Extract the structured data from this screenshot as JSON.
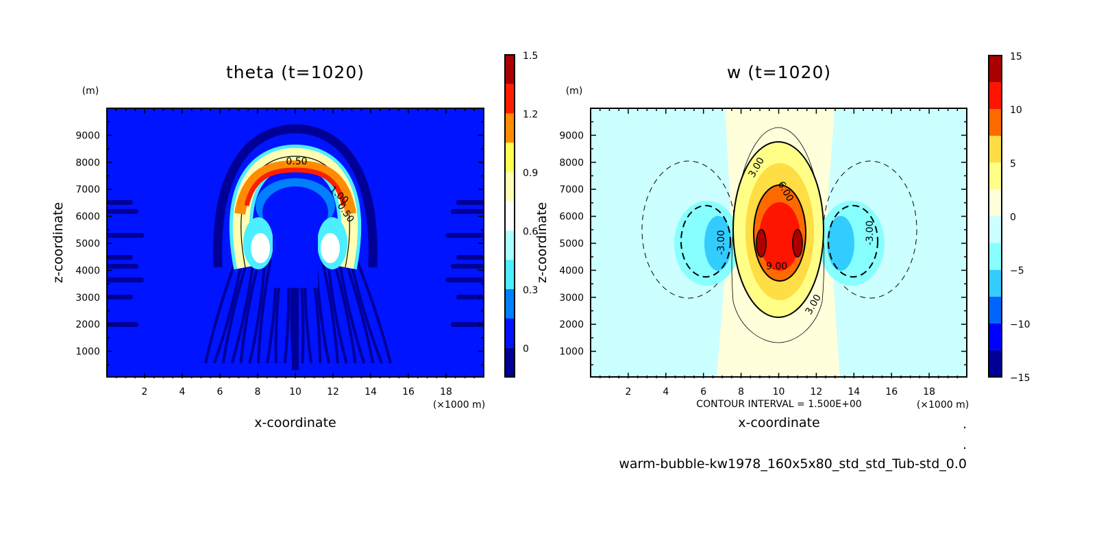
{
  "chart_data": [
    {
      "type": "heatmap",
      "title": "theta (t=1020)",
      "xlabel": "x-coordinate",
      "ylabel": "z-coordinate",
      "x_unit": "(×1000 m)",
      "y_unit": "(m)",
      "xlim": [
        0,
        20
      ],
      "ylim": [
        0,
        10000
      ],
      "xticks": [
        2,
        4,
        6,
        8,
        10,
        12,
        14,
        16,
        18
      ],
      "yticks": [
        1000,
        2000,
        3000,
        4000,
        5000,
        6000,
        7000,
        8000,
        9000
      ],
      "colorbar": {
        "levels": [
          -0.15,
          0,
          0.15,
          0.3,
          0.45,
          0.6,
          0.75,
          0.9,
          1.05,
          1.2,
          1.35,
          1.5
        ],
        "tick_labels": [
          "0",
          "0.3",
          "0.6",
          "0.9",
          "1.2",
          "1.5"
        ],
        "tick_values": [
          0,
          0.3,
          0.6,
          0.9,
          1.2,
          1.5
        ],
        "colors": [
          "#000096",
          "#0014ff",
          "#0080ff",
          "#4ceeff",
          "#aaffff",
          "#ffffff",
          "#ffffb4",
          "#ffff50",
          "#ff8c00",
          "#ff1e00",
          "#aa0000"
        ]
      },
      "contour_labels": [
        "0.50",
        "1.00",
        "0.50"
      ]
    },
    {
      "type": "heatmap",
      "title": "w (t=1020)",
      "xlabel": "x-coordinate",
      "ylabel": "z-coordinate",
      "x_unit": "(×1000 m)",
      "y_unit": "(m)",
      "xlim": [
        0,
        20
      ],
      "ylim": [
        0,
        10000
      ],
      "xticks": [
        2,
        4,
        6,
        8,
        10,
        12,
        14,
        16,
        18
      ],
      "yticks": [
        1000,
        2000,
        3000,
        4000,
        5000,
        6000,
        7000,
        8000,
        9000
      ],
      "colorbar": {
        "levels": [
          -15,
          -12.5,
          -10,
          -7.5,
          -5,
          -2.5,
          0,
          2.5,
          5,
          7.5,
          10,
          12.5,
          15
        ],
        "tick_labels": [
          "-15",
          "-10",
          "-5",
          "0",
          "5",
          "10",
          "15"
        ],
        "tick_values": [
          -15,
          -10,
          -5,
          0,
          5,
          10,
          15
        ],
        "colors": [
          "#000096",
          "#0000ff",
          "#0064ff",
          "#33ccff",
          "#88ffff",
          "#ccffff",
          "#ffffdc",
          "#ffff88",
          "#ffdd44",
          "#ff6a00",
          "#ff1400",
          "#aa0000"
        ]
      },
      "contour_interval": "CONTOUR INTERVAL = 1.500E+00",
      "contour_labels": [
        "3.00",
        "6.00",
        "9.00",
        "3.00",
        "-3.00",
        "-3.00"
      ]
    }
  ],
  "footer": {
    "run_name": "warm-bubble-kw1978_160x5x80_std_std_Tub-std_0.0",
    "dot1": ".",
    "dot2": "."
  }
}
